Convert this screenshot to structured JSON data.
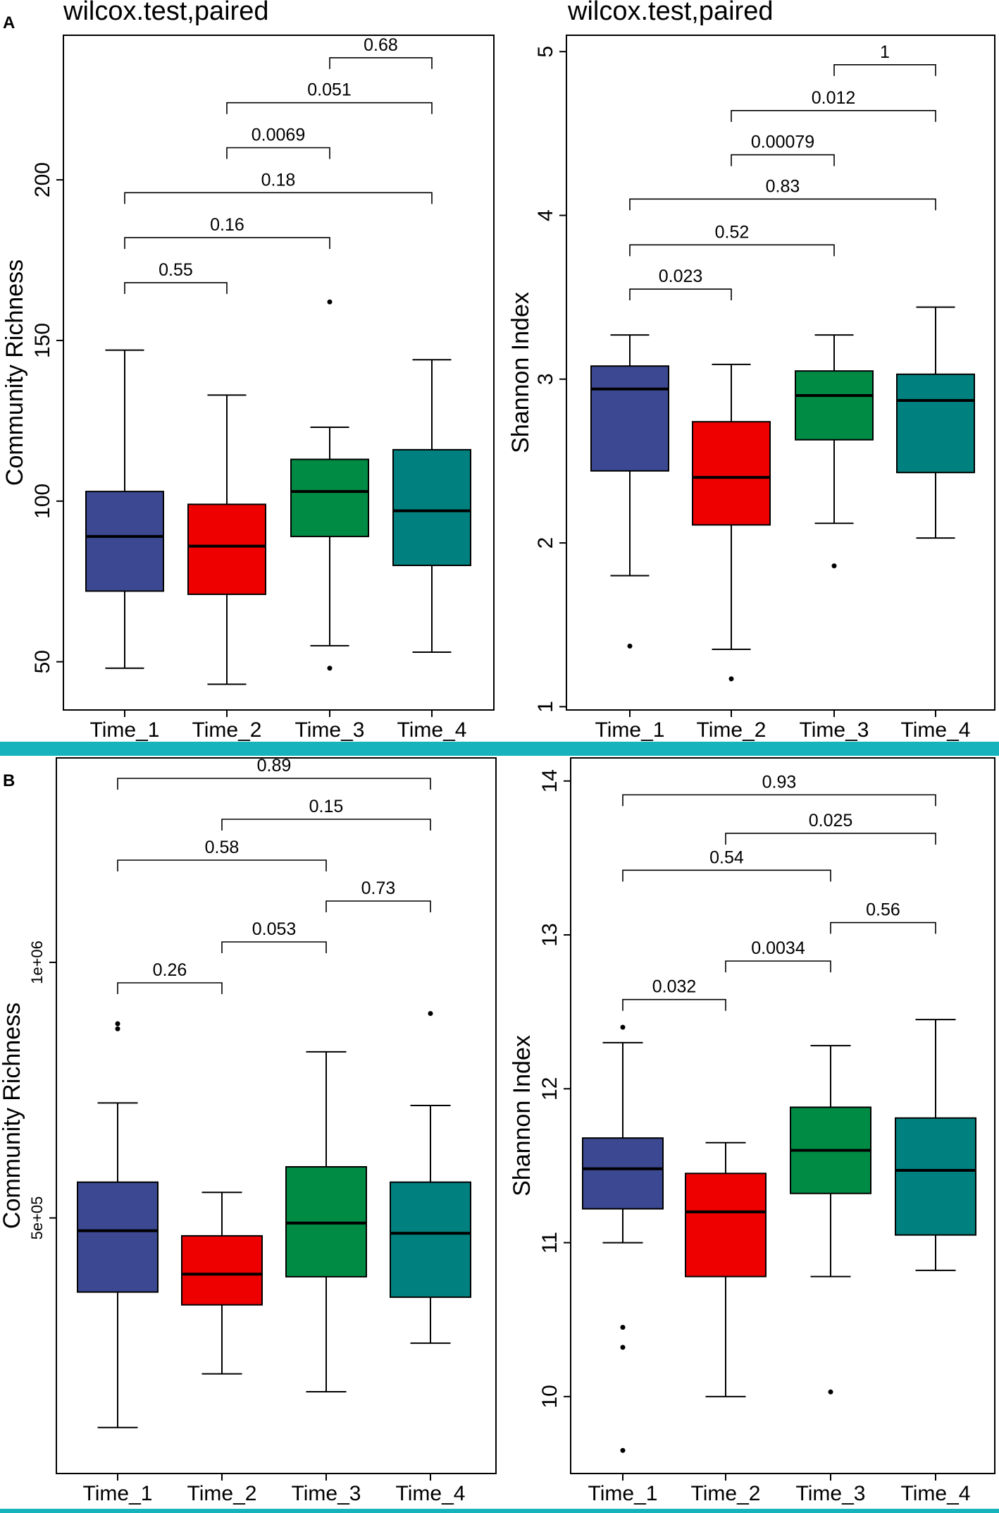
{
  "figure": {
    "colors": [
      "#3c4992",
      "#ee0000",
      "#008b45",
      "#008180"
    ],
    "separator_color": "#17b3bd"
  },
  "panel_labels": [
    "A",
    "B"
  ],
  "chart_data": [
    {
      "type": "box",
      "panel": "A",
      "title": "wilcox.test,paired",
      "xlabel": "",
      "ylabel": "Community Richness",
      "ylim": [
        35,
        245
      ],
      "yticks": [
        50,
        100,
        150,
        200
      ],
      "ytick_labels": [
        "50",
        "100",
        "150",
        "200"
      ],
      "categories": [
        "Time_1",
        "Time_2",
        "Time_3",
        "Time_4"
      ],
      "boxes": [
        {
          "min": 48,
          "q1": 72,
          "median": 89,
          "q3": 103,
          "max": 147,
          "outliers": []
        },
        {
          "min": 43,
          "q1": 71,
          "median": 86,
          "q3": 99,
          "max": 133,
          "outliers": []
        },
        {
          "min": 55,
          "q1": 89,
          "median": 103,
          "q3": 113,
          "max": 123,
          "outliers": [
            162,
            48
          ]
        },
        {
          "min": 53,
          "q1": 80,
          "median": 97,
          "q3": 116,
          "max": 144,
          "outliers": []
        }
      ],
      "comparisons": [
        {
          "from": "Time_1",
          "to": "Time_2",
          "p": "0.55",
          "level": 168
        },
        {
          "from": "Time_1",
          "to": "Time_3",
          "p": "0.16",
          "level": 182
        },
        {
          "from": "Time_1",
          "to": "Time_4",
          "p": "0.18",
          "level": 196
        },
        {
          "from": "Time_2",
          "to": "Time_3",
          "p": "0.0069",
          "level": 210
        },
        {
          "from": "Time_2",
          "to": "Time_4",
          "p": "0.051",
          "level": 224
        },
        {
          "from": "Time_3",
          "to": "Time_4",
          "p": "0.68",
          "level": 238
        }
      ]
    },
    {
      "type": "box",
      "panel": "A",
      "title": "wilcox.test,paired",
      "xlabel": "",
      "ylabel": "Shannon Index",
      "ylim": [
        0.98,
        5.1
      ],
      "yticks": [
        1,
        2,
        3,
        4,
        5
      ],
      "ytick_labels": [
        "1",
        "2",
        "3",
        "4",
        "5"
      ],
      "categories": [
        "Time_1",
        "Time_2",
        "Time_3",
        "Time_4"
      ],
      "boxes": [
        {
          "min": 1.8,
          "q1": 2.44,
          "median": 2.94,
          "q3": 3.08,
          "max": 3.27,
          "outliers": [
            1.37
          ]
        },
        {
          "min": 1.35,
          "q1": 2.11,
          "median": 2.4,
          "q3": 2.74,
          "max": 3.09,
          "outliers": [
            1.17
          ]
        },
        {
          "min": 2.12,
          "q1": 2.63,
          "median": 2.9,
          "q3": 3.05,
          "max": 3.27,
          "outliers": [
            1.86
          ]
        },
        {
          "min": 2.03,
          "q1": 2.43,
          "median": 2.87,
          "q3": 3.03,
          "max": 3.44,
          "outliers": []
        }
      ],
      "comparisons": [
        {
          "from": "Time_1",
          "to": "Time_2",
          "p": "0.023",
          "level": 3.55
        },
        {
          "from": "Time_1",
          "to": "Time_3",
          "p": "0.52",
          "level": 3.82
        },
        {
          "from": "Time_1",
          "to": "Time_4",
          "p": "0.83",
          "level": 4.1
        },
        {
          "from": "Time_2",
          "to": "Time_3",
          "p": "0.00079",
          "level": 4.37
        },
        {
          "from": "Time_2",
          "to": "Time_4",
          "p": "0.012",
          "level": 4.64
        },
        {
          "from": "Time_3",
          "to": "Time_4",
          "p": "1",
          "level": 4.92
        }
      ]
    },
    {
      "type": "box",
      "panel": "B",
      "title": "",
      "xlabel": "",
      "ylabel": "Community Richness",
      "ylim": [
        0,
        1400000
      ],
      "yticks": [
        500000,
        1000000
      ],
      "ytick_labels": [
        "5e+05",
        "1e+06"
      ],
      "categories": [
        "Time_1",
        "Time_2",
        "Time_3",
        "Time_4"
      ],
      "boxes": [
        {
          "min": 90000,
          "q1": 355000,
          "median": 475000,
          "q3": 570000,
          "max": 725000,
          "outliers": [
            880000,
            870000
          ]
        },
        {
          "min": 195000,
          "q1": 330000,
          "median": 390000,
          "q3": 465000,
          "max": 550000,
          "outliers": []
        },
        {
          "min": 160000,
          "q1": 385000,
          "median": 490000,
          "q3": 600000,
          "max": 825000,
          "outliers": []
        },
        {
          "min": 255000,
          "q1": 345000,
          "median": 470000,
          "q3": 570000,
          "max": 720000,
          "outliers": [
            900000
          ]
        }
      ],
      "comparisons": [
        {
          "from": "Time_1",
          "to": "Time_2",
          "p": "0.26",
          "level": 960000
        },
        {
          "from": "Time_2",
          "to": "Time_3",
          "p": "0.053",
          "level": 1040000
        },
        {
          "from": "Time_3",
          "to": "Time_4",
          "p": "0.73",
          "level": 1120000
        },
        {
          "from": "Time_1",
          "to": "Time_3",
          "p": "0.58",
          "level": 1200000
        },
        {
          "from": "Time_2",
          "to": "Time_4",
          "p": "0.15",
          "level": 1280000
        },
        {
          "from": "Time_1",
          "to": "Time_4",
          "p": "0.89",
          "level": 1360000
        }
      ]
    },
    {
      "type": "box",
      "panel": "B",
      "title": "",
      "xlabel": "",
      "ylabel": "Shannon Index",
      "ylim": [
        9.5,
        14.15
      ],
      "yticks": [
        10,
        11,
        12,
        13,
        14
      ],
      "ytick_labels": [
        "10",
        "11",
        "12",
        "13",
        "14"
      ],
      "categories": [
        "Time_1",
        "Time_2",
        "Time_3",
        "Time_4"
      ],
      "boxes": [
        {
          "min": 11.0,
          "q1": 11.22,
          "median": 11.48,
          "q3": 11.68,
          "max": 12.3,
          "outliers": [
            12.4,
            10.45,
            10.32,
            9.65
          ]
        },
        {
          "min": 10.0,
          "q1": 10.78,
          "median": 11.2,
          "q3": 11.45,
          "max": 11.65,
          "outliers": []
        },
        {
          "min": 10.78,
          "q1": 11.32,
          "median": 11.6,
          "q3": 11.88,
          "max": 12.28,
          "outliers": [
            10.03
          ]
        },
        {
          "min": 10.82,
          "q1": 11.05,
          "median": 11.47,
          "q3": 11.81,
          "max": 12.45,
          "outliers": []
        }
      ],
      "comparisons": [
        {
          "from": "Time_1",
          "to": "Time_2",
          "p": "0.032",
          "level": 12.58
        },
        {
          "from": "Time_2",
          "to": "Time_3",
          "p": "0.0034",
          "level": 12.83
        },
        {
          "from": "Time_3",
          "to": "Time_4",
          "p": "0.56",
          "level": 13.08
        },
        {
          "from": "Time_1",
          "to": "Time_3",
          "p": "0.54",
          "level": 13.42
        },
        {
          "from": "Time_2",
          "to": "Time_4",
          "p": "0.025",
          "level": 13.66
        },
        {
          "from": "Time_1",
          "to": "Time_4",
          "p": "0.93",
          "level": 13.91
        }
      ]
    }
  ]
}
